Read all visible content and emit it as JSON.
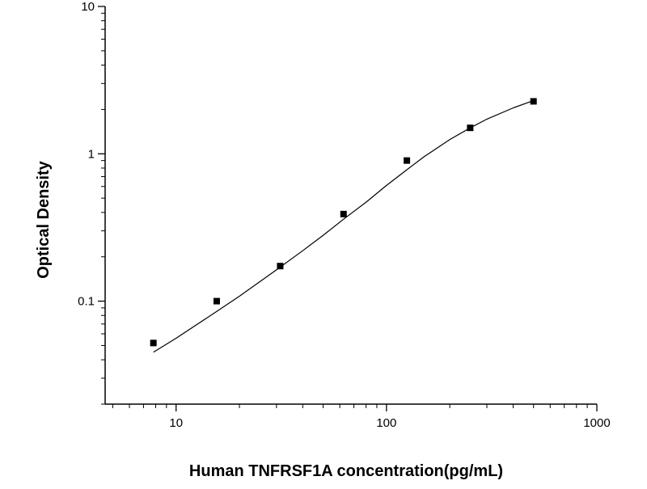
{
  "chart_data": {
    "type": "scatter",
    "title": "",
    "xlabel": "Human TNFRSF1A concentration(pg/mL)",
    "ylabel": "Optical Density",
    "x_scale": "log",
    "y_scale": "log",
    "xlim": [
      4.6,
      1000
    ],
    "ylim": [
      0.02,
      10
    ],
    "x_ticks": [
      10,
      100,
      1000
    ],
    "x_tick_labels": [
      "10",
      "100",
      "1000"
    ],
    "y_ticks": [
      0.1,
      1,
      10
    ],
    "y_tick_labels": [
      "0.1",
      "1",
      "10"
    ],
    "grid": false,
    "legend": "none",
    "series": [
      {
        "kind": "points",
        "marker": "square",
        "color": "#000000",
        "x": [
          7.8,
          15.6,
          31.25,
          62.5,
          125,
          250,
          500
        ],
        "y": [
          0.052,
          0.1,
          0.173,
          0.39,
          0.9,
          1.5,
          2.27
        ]
      },
      {
        "kind": "fit-curve",
        "color": "#000000",
        "x": [
          7.8,
          10,
          15,
          20,
          30,
          40,
          50,
          62.5,
          80,
          100,
          125,
          150,
          200,
          250,
          300,
          400,
          500
        ],
        "y": [
          0.045,
          0.056,
          0.082,
          0.108,
          0.163,
          0.22,
          0.28,
          0.36,
          0.47,
          0.61,
          0.78,
          0.95,
          1.25,
          1.5,
          1.72,
          2.05,
          2.3
        ]
      }
    ]
  }
}
